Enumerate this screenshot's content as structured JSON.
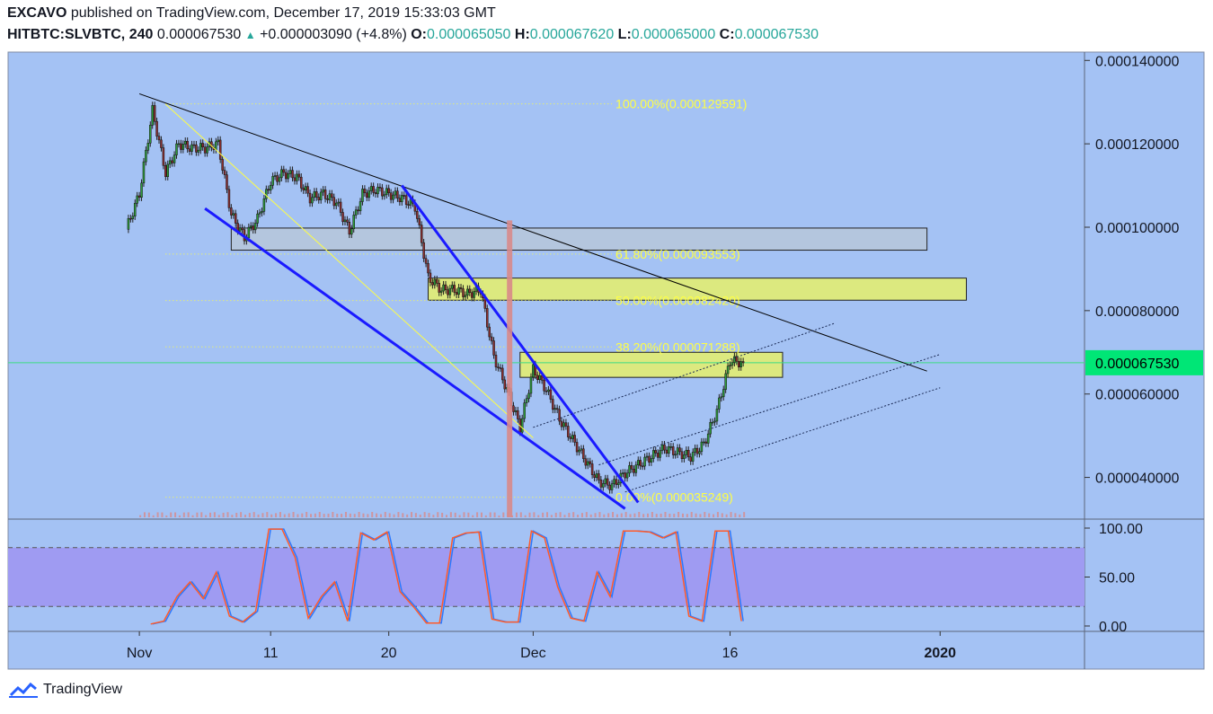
{
  "header": {
    "author": "EXCAVO",
    "published_text": "published on TradingView.com, December 17, 2019 15:33:03 GMT",
    "symbol": "HITBTC:SLVBTC, 240",
    "last_price": "0.000067530",
    "change": "+0.000003090 (+4.8%)",
    "open_label": "O:",
    "open": "0.000065050",
    "high_label": "H:",
    "high": "0.000067620",
    "low_label": "L:",
    "low": "0.000065000",
    "close_label": "C:",
    "close": "0.000067530"
  },
  "footer": {
    "brand": "TradingView"
  },
  "colors": {
    "background": "#a4c2f4",
    "up": "#2e9a3a",
    "down": "#8b2f2f",
    "price_tag": "#00e676",
    "fib_text": "#ffff44",
    "zone_yellow": "#e6f06a",
    "zone_grey": "#b7c7d9",
    "wedge": "#1a1aff",
    "stoch_band": "#9f9bf2",
    "stoch_k": "#2a78ff",
    "stoch_d": "#ff5a2a"
  },
  "chart_data": {
    "type": "candlestick",
    "price_axis_ticks": [
      "0.000140000",
      "0.000120000",
      "0.000100000",
      "0.000080000",
      "0.000060000",
      "0.000040000"
    ],
    "y_range": [
      3e-05,
      0.000142
    ],
    "x_labels": [
      "Nov",
      "11",
      "20",
      "Dec",
      "16",
      "2020"
    ],
    "x_label_dates": [
      "2019-11-01",
      "2019-11-11",
      "2019-11-20",
      "2019-12-01",
      "2019-12-16",
      "2020-01-01"
    ],
    "x_range_dates": [
      "2019-10-22",
      "2020-01-12"
    ],
    "current_price": 6.75e-05,
    "current_price_label": "0.000067530",
    "price_path": [
      [
        "2019-10-31",
        9.95e-05
      ],
      [
        "2019-11-01",
        0.000108
      ],
      [
        "2019-11-02",
        0.000128
      ],
      [
        "2019-11-03",
        0.000113
      ],
      [
        "2019-11-04",
        0.00012
      ],
      [
        "2019-11-05",
        0.000119
      ],
      [
        "2019-11-06",
        0.000119
      ],
      [
        "2019-11-07",
        0.00012
      ],
      [
        "2019-11-08",
        0.000103
      ],
      [
        "2019-11-09",
        9.75e-05
      ],
      [
        "2019-11-10",
        0.000102
      ],
      [
        "2019-11-11",
        0.000111
      ],
      [
        "2019-11-12",
        0.000113
      ],
      [
        "2019-11-13",
        0.000112
      ],
      [
        "2019-11-14",
        0.000107
      ],
      [
        "2019-11-15",
        0.000108
      ],
      [
        "2019-11-16",
        0.000106
      ],
      [
        "2019-11-17",
        9.9e-05
      ],
      [
        "2019-11-18",
        0.000108
      ],
      [
        "2019-11-19",
        0.000109
      ],
      [
        "2019-11-20",
        0.000108
      ],
      [
        "2019-11-21",
        0.000107
      ],
      [
        "2019-11-22",
        0.000105
      ],
      [
        "2019-11-23",
        8.8e-05
      ],
      [
        "2019-11-24",
        8.5e-05
      ],
      [
        "2019-11-25",
        8.5e-05
      ],
      [
        "2019-11-26",
        8.4e-05
      ],
      [
        "2019-11-27",
        8.5e-05
      ],
      [
        "2019-11-28",
        6.9e-05
      ],
      [
        "2019-11-29",
        6.1e-05
      ],
      [
        "2019-11-30",
        5.2e-05
      ],
      [
        "2019-12-01",
        6.6e-05
      ],
      [
        "2019-12-02",
        6.1e-05
      ],
      [
        "2019-12-03",
        5.4e-05
      ],
      [
        "2019-12-04",
        4.9e-05
      ],
      [
        "2019-12-05",
        4.4e-05
      ],
      [
        "2019-12-06",
        3.9e-05
      ],
      [
        "2019-12-07",
        3.8e-05
      ],
      [
        "2019-12-08",
        4.1e-05
      ],
      [
        "2019-12-09",
        4.3e-05
      ],
      [
        "2019-12-10",
        4.5e-05
      ],
      [
        "2019-12-11",
        4.7e-05
      ],
      [
        "2019-12-12",
        4.6e-05
      ],
      [
        "2019-12-13",
        4.5e-05
      ],
      [
        "2019-12-14",
        4.8e-05
      ],
      [
        "2019-12-15",
        5.6e-05
      ],
      [
        "2019-12-16",
        6.8e-05
      ],
      [
        "2019-12-17",
        6.75e-05
      ]
    ],
    "fibonacci": [
      {
        "label": "100.00%(0.000129591)",
        "value": 0.000129591
      },
      {
        "label": "61.80%(0.000093553)",
        "value": 9.3553e-05
      },
      {
        "label": "50.00%(0.000082420)",
        "value": 8.242e-05
      },
      {
        "label": "38.20%(0.000071288)",
        "value": 7.1288e-05
      },
      {
        "label": "0.00%(0.000035249)",
        "value": 3.5249e-05
      }
    ],
    "zones": [
      {
        "name": "grey-zone",
        "date_from": "2019-11-08",
        "date_to": "2019-12-31",
        "low": 9.45e-05,
        "high": 9.98e-05,
        "color": "#b7c7d9"
      },
      {
        "name": "yellow-zone-upper",
        "date_from": "2019-11-23",
        "date_to": "2020-01-03",
        "low": 8.25e-05,
        "high": 8.78e-05,
        "color": "#e6f06a"
      },
      {
        "name": "yellow-zone-lower",
        "date_from": "2019-11-30",
        "date_to": "2019-12-20",
        "low": 6.4e-05,
        "high": 7e-05,
        "color": "#e6f06a"
      }
    ],
    "trendlines": [
      {
        "name": "black-downtrend",
        "from": [
          "2019-11-01",
          0.000132
        ],
        "to": [
          "2019-12-31",
          6.55e-05
        ],
        "color": "#000000",
        "width": 1
      },
      {
        "name": "yellow-diagonal",
        "from": [
          "2019-11-03",
          0.0001295
        ],
        "to": [
          "2019-12-01",
          4.95e-05
        ],
        "color": "#ffff44",
        "width": 1
      },
      {
        "name": "wedge-lower",
        "from": [
          "2019-11-06",
          0.0001045
        ],
        "to": [
          "2019-12-08",
          3.25e-05
        ],
        "color": "#1a1aff",
        "width": 3
      },
      {
        "name": "wedge-upper",
        "from": [
          "2019-11-21",
          0.00011
        ],
        "to": [
          "2019-12-09",
          3.4e-05
        ],
        "color": "#1a1aff",
        "width": 3
      },
      {
        "name": "channel-top",
        "from": [
          "2019-12-01",
          5.2e-05
        ],
        "to": [
          "2019-12-24",
          7.7e-05
        ],
        "color": "#1a2a55",
        "width": 1,
        "dotted": true
      },
      {
        "name": "channel-mid",
        "from": [
          "2019-12-06",
          4.3e-05
        ],
        "to": [
          "2020-01-01",
          6.95e-05
        ],
        "color": "#1a2a55",
        "width": 1,
        "dotted": true
      },
      {
        "name": "channel-bottom",
        "from": [
          "2019-12-08",
          3.65e-05
        ],
        "to": [
          "2020-01-01",
          6.15e-05
        ],
        "color": "#1a2a55",
        "width": 1,
        "dotted": true
      }
    ],
    "volume_spike": {
      "date": "2019-11-29",
      "relative_height": 0.87
    },
    "stochastic": {
      "axis_ticks": [
        "100.00",
        "50.00",
        "0.00"
      ],
      "y_range": [
        0,
        100
      ],
      "band": [
        20,
        80
      ],
      "k_path": [
        [
          "2019-11-02",
          2
        ],
        [
          "2019-11-03",
          5
        ],
        [
          "2019-11-04",
          30
        ],
        [
          "2019-11-05",
          45
        ],
        [
          "2019-11-06",
          28
        ],
        [
          "2019-11-07",
          55
        ],
        [
          "2019-11-08",
          10
        ],
        [
          "2019-11-09",
          4
        ],
        [
          "2019-11-10",
          15
        ],
        [
          "2019-11-11",
          99
        ],
        [
          "2019-11-12",
          99
        ],
        [
          "2019-11-13",
          70
        ],
        [
          "2019-11-14",
          8
        ],
        [
          "2019-11-15",
          30
        ],
        [
          "2019-11-16",
          45
        ],
        [
          "2019-11-17",
          5
        ],
        [
          "2019-11-18",
          95
        ],
        [
          "2019-11-19",
          88
        ],
        [
          "2019-11-20",
          96
        ],
        [
          "2019-11-21",
          35
        ],
        [
          "2019-11-22",
          20
        ],
        [
          "2019-11-23",
          3
        ],
        [
          "2019-11-24",
          3
        ],
        [
          "2019-11-25",
          90
        ],
        [
          "2019-11-26",
          95
        ],
        [
          "2019-11-27",
          96
        ],
        [
          "2019-11-28",
          7
        ],
        [
          "2019-11-29",
          4
        ],
        [
          "2019-11-30",
          4
        ],
        [
          "2019-12-01",
          97
        ],
        [
          "2019-12-02",
          90
        ],
        [
          "2019-12-03",
          40
        ],
        [
          "2019-12-04",
          8
        ],
        [
          "2019-12-05",
          5
        ],
        [
          "2019-12-06",
          55
        ],
        [
          "2019-12-07",
          30
        ],
        [
          "2019-12-08",
          97
        ],
        [
          "2019-12-09",
          97
        ],
        [
          "2019-12-10",
          96
        ],
        [
          "2019-12-11",
          90
        ],
        [
          "2019-12-12",
          96
        ],
        [
          "2019-12-13",
          10
        ],
        [
          "2019-12-14",
          5
        ],
        [
          "2019-12-15",
          97
        ],
        [
          "2019-12-16",
          97
        ],
        [
          "2019-12-17",
          5
        ]
      ],
      "d_offset": -2
    }
  }
}
